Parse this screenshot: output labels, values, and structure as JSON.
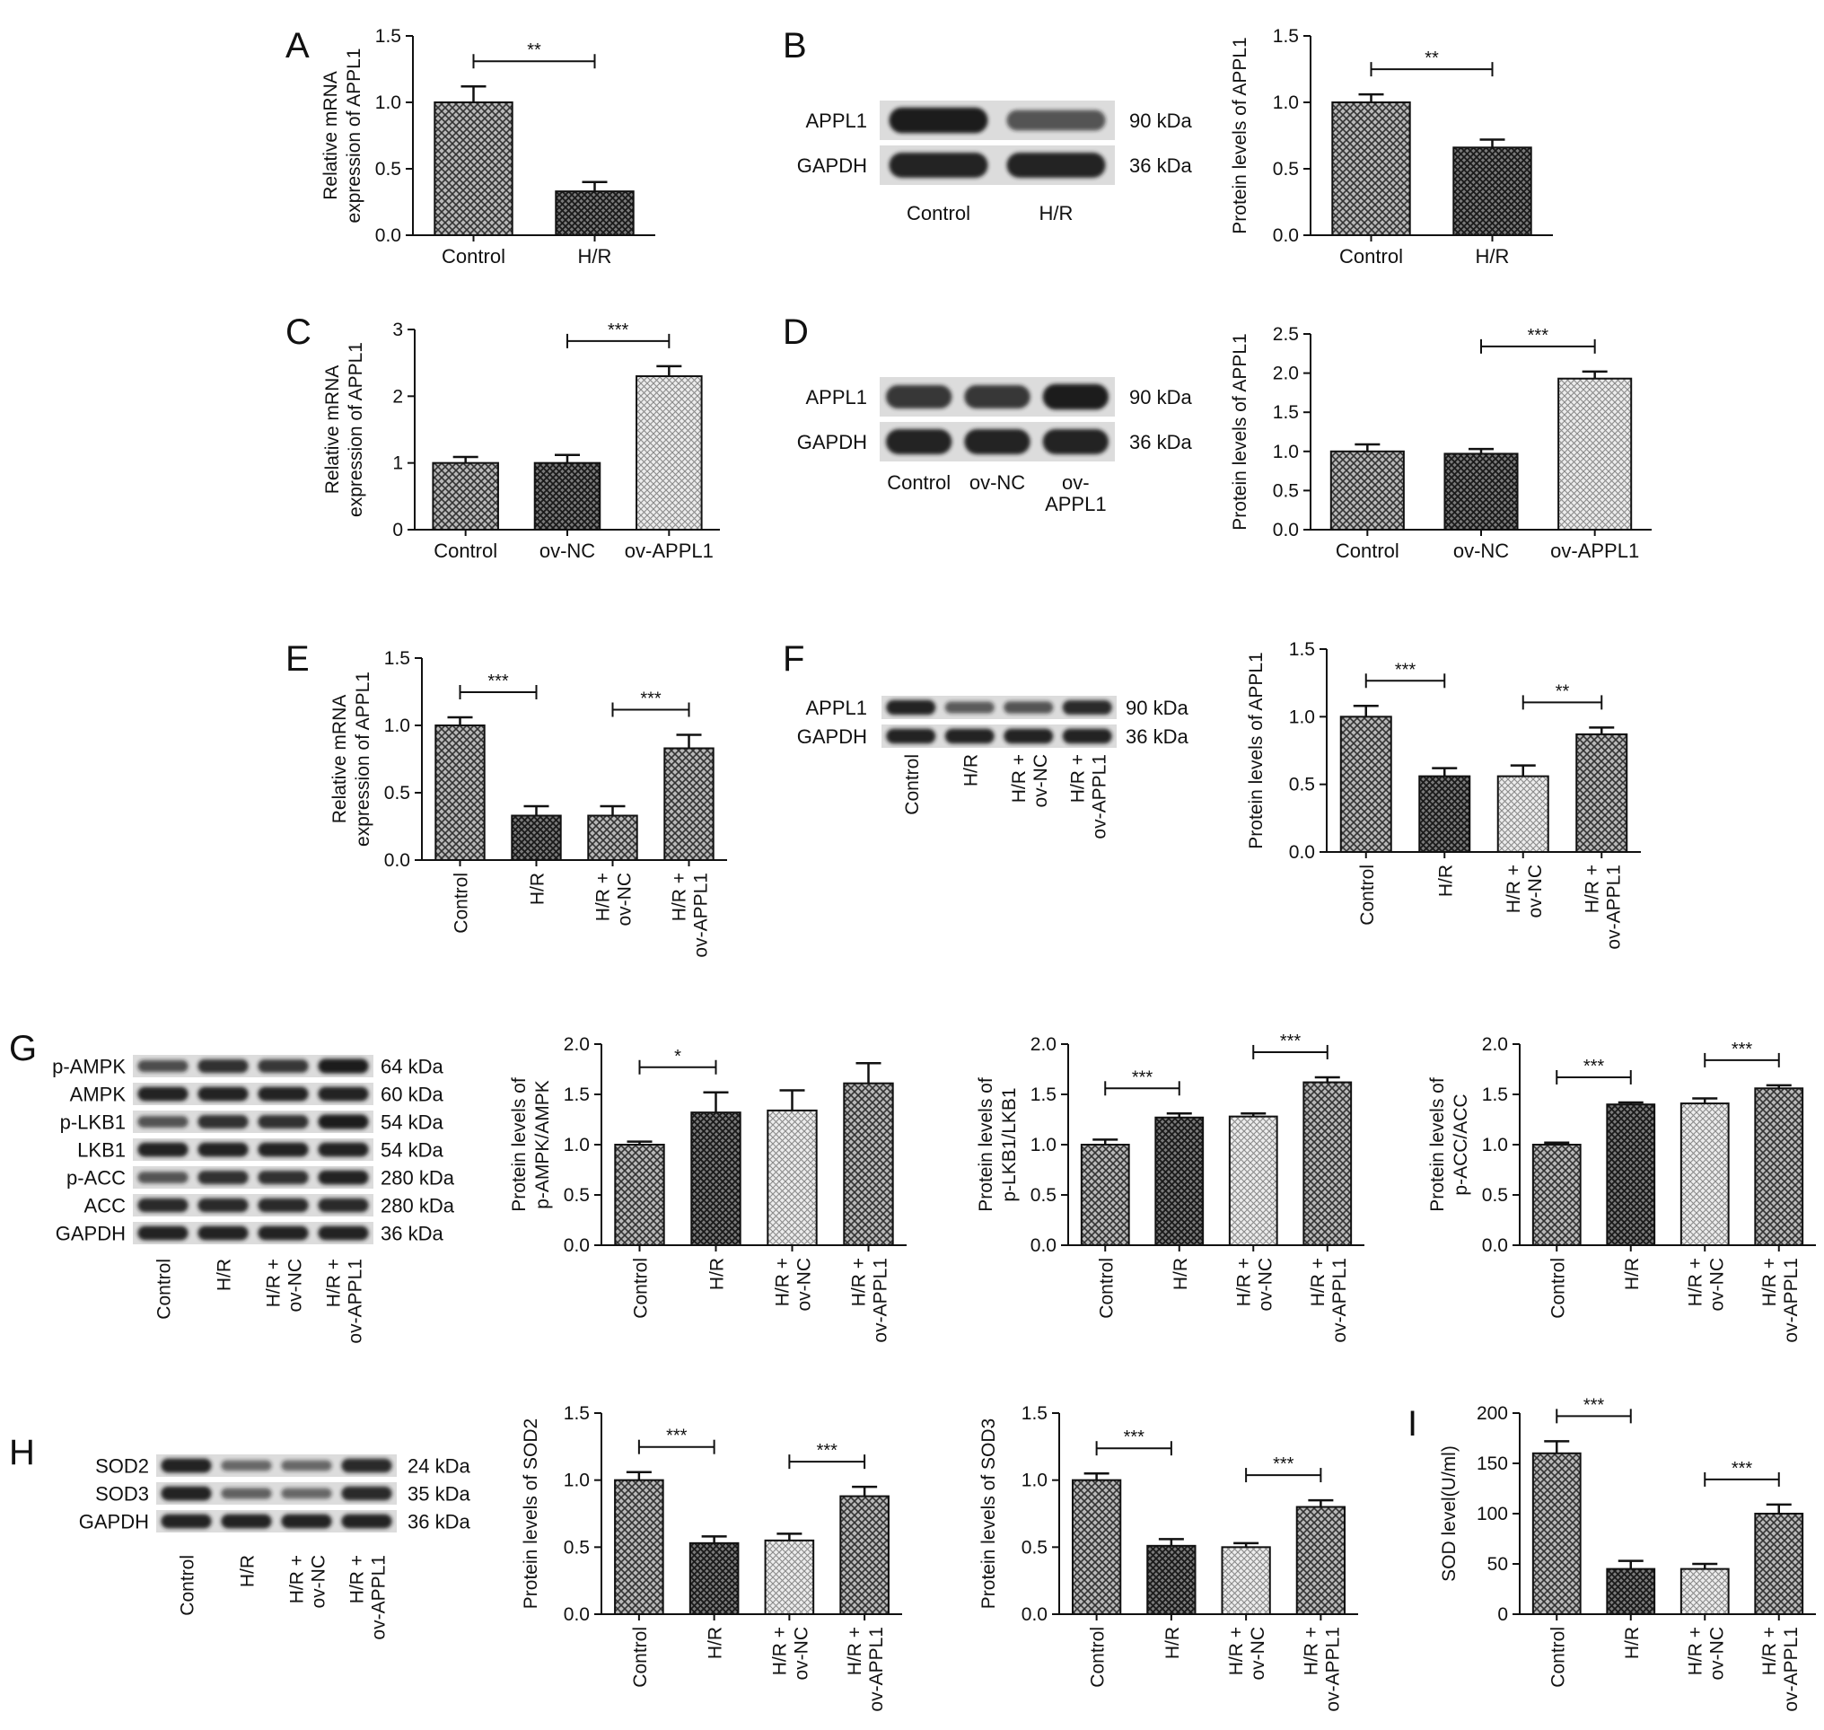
{
  "patterns": {
    "cross": "crosshatch-dark",
    "dark": "crosshatch-darker",
    "light": "crosshatch-light"
  },
  "colors": {
    "ink": "#111111",
    "blot": "#1c1c1c",
    "background": "#ffffff",
    "band_bg": "#dcdcdc"
  },
  "chart_data": [
    {
      "id": "A",
      "type": "bar",
      "panel_letter": "A",
      "categories": [
        "Control",
        "H/R"
      ],
      "values": [
        1.0,
        0.33
      ],
      "errors": [
        0.12,
        0.07
      ],
      "patterns": [
        "cross",
        "dark"
      ],
      "ylabel": [
        "Relative mRNA",
        "expression of APPL1"
      ],
      "ylim": [
        0,
        1.5
      ],
      "yticks": [
        "0.0",
        "0.5",
        "1.0",
        "1.5"
      ],
      "rotate_x": false,
      "significance": [
        {
          "from": 0,
          "to": 1,
          "label": "**"
        }
      ]
    },
    {
      "id": "B",
      "type": "bar",
      "categories": [
        "Control",
        "H/R"
      ],
      "values": [
        1.0,
        0.66
      ],
      "errors": [
        0.06,
        0.06
      ],
      "patterns": [
        "cross",
        "dark"
      ],
      "ylabel": [
        "Protein levels of APPL1"
      ],
      "ylim": [
        0,
        1.5
      ],
      "yticks": [
        "0.0",
        "0.5",
        "1.0",
        "1.5"
      ],
      "rotate_x": false,
      "significance": [
        {
          "from": 0,
          "to": 1,
          "label": "**"
        }
      ]
    },
    {
      "id": "C",
      "type": "bar",
      "panel_letter": "C",
      "categories": [
        "Control",
        "ov-NC",
        "ov-APPL1"
      ],
      "values": [
        1.0,
        1.0,
        2.3
      ],
      "errors": [
        0.09,
        0.12,
        0.15
      ],
      "patterns": [
        "cross",
        "dark",
        "light"
      ],
      "ylabel": [
        "Relative mRNA",
        "expression of APPL1"
      ],
      "ylim": [
        0,
        3
      ],
      "yticks": [
        "0",
        "1",
        "2",
        "3"
      ],
      "rotate_x": false,
      "significance": [
        {
          "from": 1,
          "to": 2,
          "label": "***"
        }
      ]
    },
    {
      "id": "D",
      "type": "bar",
      "categories": [
        "Control",
        "ov-NC",
        "ov-APPL1"
      ],
      "values": [
        1.0,
        0.97,
        1.93
      ],
      "errors": [
        0.09,
        0.06,
        0.09
      ],
      "patterns": [
        "cross",
        "dark",
        "light"
      ],
      "ylabel": [
        "Protein levels of APPL1"
      ],
      "ylim": [
        0,
        2.5
      ],
      "yticks": [
        "0.0",
        "0.5",
        "1.0",
        "1.5",
        "2.0",
        "2.5"
      ],
      "rotate_x": false,
      "significance": [
        {
          "from": 1,
          "to": 2,
          "label": "***"
        }
      ]
    },
    {
      "id": "E",
      "type": "bar",
      "panel_letter": "E",
      "categories": [
        "Control",
        "H/R",
        "H/R +|ov-NC",
        "H/R +|ov-APPL1"
      ],
      "values": [
        1.0,
        0.33,
        0.33,
        0.83
      ],
      "errors": [
        0.06,
        0.07,
        0.07,
        0.1
      ],
      "patterns": [
        "cross",
        "dark",
        "cross",
        "cross"
      ],
      "ylabel": [
        "Relative mRNA",
        "expression of APPL1"
      ],
      "ylim": [
        0,
        1.5
      ],
      "yticks": [
        "0.0",
        "0.5",
        "1.0",
        "1.5"
      ],
      "rotate_x": true,
      "significance": [
        {
          "from": 0,
          "to": 1,
          "label": "***"
        },
        {
          "from": 2,
          "to": 3,
          "label": "***"
        }
      ]
    },
    {
      "id": "F",
      "type": "bar",
      "categories": [
        "Control",
        "H/R",
        "H/R +|ov-NC",
        "H/R +|ov-APPL1"
      ],
      "values": [
        1.0,
        0.56,
        0.56,
        0.87
      ],
      "errors": [
        0.08,
        0.06,
        0.08,
        0.05
      ],
      "patterns": [
        "cross",
        "dark",
        "light",
        "cross"
      ],
      "ylabel": [
        "Protein levels of APPL1"
      ],
      "ylim": [
        0,
        1.5
      ],
      "yticks": [
        "0.0",
        "0.5",
        "1.0",
        "1.5"
      ],
      "rotate_x": true,
      "significance": [
        {
          "from": 0,
          "to": 1,
          "label": "***"
        },
        {
          "from": 2,
          "to": 3,
          "label": "**"
        }
      ]
    },
    {
      "id": "G1",
      "type": "bar",
      "categories": [
        "Control",
        "H/R",
        "H/R +|ov-NC",
        "H/R +|ov-APPL1"
      ],
      "values": [
        1.0,
        1.32,
        1.34,
        1.61
      ],
      "errors": [
        0.03,
        0.2,
        0.2,
        0.2
      ],
      "patterns": [
        "cross",
        "dark",
        "light",
        "cross"
      ],
      "ylabel": [
        "Protein levels of",
        "p-AMPK/AMPK"
      ],
      "ylim": [
        0,
        2.0
      ],
      "yticks": [
        "0.0",
        "0.5",
        "1.0",
        "1.5",
        "2.0"
      ],
      "rotate_x": true,
      "significance": [
        {
          "from": 0,
          "to": 1,
          "label": "*"
        }
      ]
    },
    {
      "id": "G2",
      "type": "bar",
      "categories": [
        "Control",
        "H/R",
        "H/R +|ov-NC",
        "H/R +|ov-APPL1"
      ],
      "values": [
        1.0,
        1.27,
        1.28,
        1.62
      ],
      "errors": [
        0.05,
        0.04,
        0.03,
        0.05
      ],
      "patterns": [
        "cross",
        "dark",
        "light",
        "cross"
      ],
      "ylabel": [
        "Protein levels of",
        "p-LKB1/LKB1"
      ],
      "ylim": [
        0,
        2.0
      ],
      "yticks": [
        "0.0",
        "0.5",
        "1.0",
        "1.5",
        "2.0"
      ],
      "rotate_x": true,
      "significance": [
        {
          "from": 0,
          "to": 1,
          "label": "***"
        },
        {
          "from": 2,
          "to": 3,
          "label": "***"
        }
      ]
    },
    {
      "id": "G3",
      "type": "bar",
      "categories": [
        "Control",
        "H/R",
        "H/R +|ov-NC",
        "H/R +|ov-APPL1"
      ],
      "values": [
        1.0,
        1.4,
        1.41,
        1.56
      ],
      "errors": [
        0.02,
        0.02,
        0.05,
        0.03
      ],
      "patterns": [
        "cross",
        "dark",
        "light",
        "cross"
      ],
      "ylabel": [
        "Protein levels of",
        "p-ACC/ACC"
      ],
      "ylim": [
        0,
        2.0
      ],
      "yticks": [
        "0.0",
        "0.5",
        "1.0",
        "1.5",
        "2.0"
      ],
      "rotate_x": true,
      "significance": [
        {
          "from": 0,
          "to": 1,
          "label": "***"
        },
        {
          "from": 2,
          "to": 3,
          "label": "***"
        }
      ]
    },
    {
      "id": "H1",
      "type": "bar",
      "categories": [
        "Control",
        "H/R",
        "H/R +|ov-NC",
        "H/R +|ov-APPL1"
      ],
      "values": [
        1.0,
        0.53,
        0.55,
        0.88
      ],
      "errors": [
        0.06,
        0.05,
        0.05,
        0.07
      ],
      "patterns": [
        "cross",
        "dark",
        "light",
        "cross"
      ],
      "ylabel": [
        "Protein levels of SOD2"
      ],
      "ylim": [
        0,
        1.5
      ],
      "yticks": [
        "0.0",
        "0.5",
        "1.0",
        "1.5"
      ],
      "rotate_x": true,
      "significance": [
        {
          "from": 0,
          "to": 1,
          "label": "***"
        },
        {
          "from": 2,
          "to": 3,
          "label": "***"
        }
      ]
    },
    {
      "id": "H2",
      "type": "bar",
      "categories": [
        "Control",
        "H/R",
        "H/R +|ov-NC",
        "H/R +|ov-APPL1"
      ],
      "values": [
        1.0,
        0.51,
        0.5,
        0.8
      ],
      "errors": [
        0.05,
        0.05,
        0.03,
        0.05
      ],
      "patterns": [
        "cross",
        "dark",
        "light",
        "cross"
      ],
      "ylabel": [
        "Protein levels of SOD3"
      ],
      "ylim": [
        0,
        1.5
      ],
      "yticks": [
        "0.0",
        "0.5",
        "1.0",
        "1.5"
      ],
      "rotate_x": true,
      "significance": [
        {
          "from": 0,
          "to": 1,
          "label": "***"
        },
        {
          "from": 2,
          "to": 3,
          "label": "***"
        }
      ]
    },
    {
      "id": "I",
      "type": "bar",
      "panel_letter": "I",
      "categories": [
        "Control",
        "H/R",
        "H/R +|ov-NC",
        "H/R +|ov-APPL1"
      ],
      "values": [
        160,
        45,
        45,
        100
      ],
      "errors": [
        12,
        8,
        5,
        9
      ],
      "patterns": [
        "cross",
        "dark",
        "light",
        "cross"
      ],
      "ylabel": [
        "SOD level(U/ml)"
      ],
      "ylim": [
        0,
        200
      ],
      "yticks": [
        "0",
        "50",
        "100",
        "150",
        "200"
      ],
      "rotate_x": true,
      "significance": [
        {
          "from": 0,
          "to": 1,
          "label": "***"
        },
        {
          "from": 2,
          "to": 3,
          "label": "***"
        }
      ]
    }
  ],
  "blots": [
    {
      "id": "B",
      "panel_letter": "B",
      "rows": [
        {
          "label": "APPL1",
          "kda": "90 kDa",
          "intensities": [
            1.0,
            0.55
          ]
        },
        {
          "label": "GAPDH",
          "kda": "36 kDa",
          "intensities": [
            0.95,
            0.95
          ]
        }
      ],
      "lanes": [
        "Control",
        "H/R"
      ],
      "rotate_lanes": false
    },
    {
      "id": "D",
      "panel_letter": "D",
      "rows": [
        {
          "label": "APPL1",
          "kda": "90 kDa",
          "intensities": [
            0.8,
            0.8,
            1.0
          ]
        },
        {
          "label": "GAPDH",
          "kda": "36 kDa",
          "intensities": [
            0.95,
            0.95,
            0.95
          ]
        }
      ],
      "lanes": [
        "Control",
        "ov-NC",
        "ov-|APPL1"
      ],
      "rotate_lanes": false
    },
    {
      "id": "F",
      "panel_letter": "F",
      "rows": [
        {
          "label": "APPL1",
          "kda": "90 kDa",
          "intensities": [
            0.95,
            0.5,
            0.55,
            0.9
          ]
        },
        {
          "label": "GAPDH",
          "kda": "36 kDa",
          "intensities": [
            0.95,
            0.95,
            0.95,
            0.95
          ]
        }
      ],
      "lanes": [
        "Control",
        "H/R",
        "H/R +|ov-NC",
        "H/R +|ov-APPL1"
      ],
      "rotate_lanes": true
    },
    {
      "id": "G",
      "panel_letter": "G",
      "rows": [
        {
          "label": "p-AMPK",
          "kda": "64 kDa",
          "intensities": [
            0.6,
            0.85,
            0.8,
            1.0
          ]
        },
        {
          "label": "AMPK",
          "kda": "60 kDa",
          "intensities": [
            0.95,
            0.95,
            0.95,
            0.95
          ]
        },
        {
          "label": "p-LKB1",
          "kda": "54 kDa",
          "intensities": [
            0.55,
            0.85,
            0.85,
            1.0
          ]
        },
        {
          "label": "LKB1",
          "kda": "54 kDa",
          "intensities": [
            0.95,
            0.95,
            0.95,
            0.95
          ]
        },
        {
          "label": "p-ACC",
          "kda": "280 kDa",
          "intensities": [
            0.55,
            0.85,
            0.85,
            0.95
          ]
        },
        {
          "label": "ACC",
          "kda": "280 kDa",
          "intensities": [
            0.9,
            0.9,
            0.9,
            0.9
          ]
        },
        {
          "label": "GAPDH",
          "kda": "36 kDa",
          "intensities": [
            0.95,
            0.95,
            0.95,
            0.95
          ]
        }
      ],
      "lanes": [
        "Control",
        "H/R",
        "H/R +|ov-NC",
        "H/R +|ov-APPL1"
      ],
      "rotate_lanes": true
    },
    {
      "id": "H",
      "panel_letter": "H",
      "rows": [
        {
          "label": "SOD2",
          "kda": "24 kDa",
          "intensities": [
            0.95,
            0.4,
            0.4,
            0.9
          ]
        },
        {
          "label": "SOD3",
          "kda": "35 kDa",
          "intensities": [
            0.95,
            0.45,
            0.4,
            0.9
          ]
        },
        {
          "label": "GAPDH",
          "kda": "36 kDa",
          "intensities": [
            0.95,
            0.95,
            0.95,
            0.95
          ]
        }
      ],
      "lanes": [
        "Control",
        "H/R",
        "H/R +|ov-NC",
        "H/R +|ov-APPL1"
      ],
      "rotate_lanes": true
    }
  ]
}
